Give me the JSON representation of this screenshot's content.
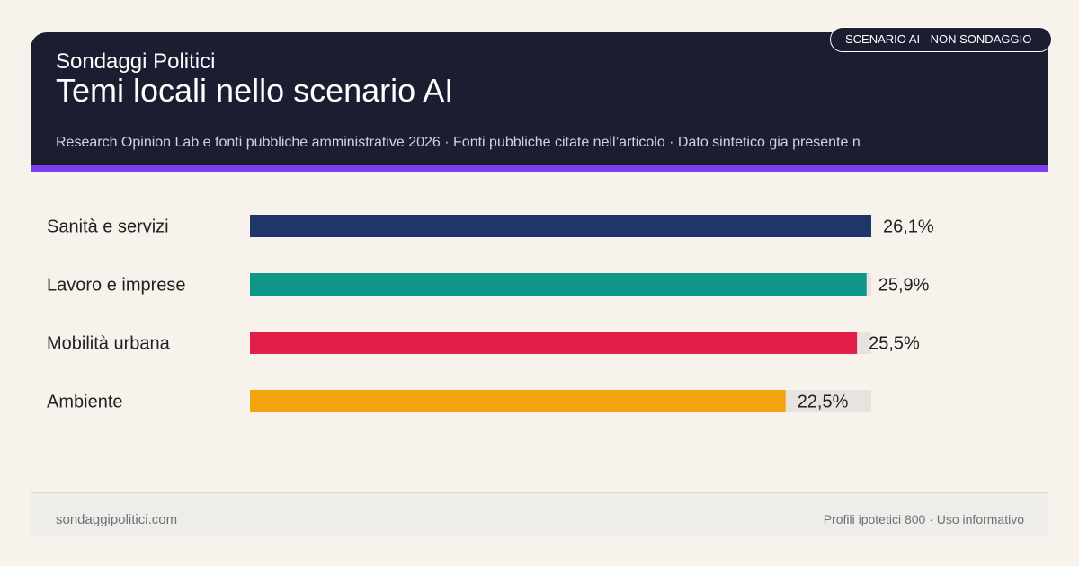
{
  "header": {
    "brand": "Sondaggi Politici",
    "title": "Temi locali nello scenario AI",
    "subtitle": "Research Opinion Lab e fonti pubbliche amministrative 2026 · Fonti pubbliche citate nell’articolo · Dato sintetico gia presente n",
    "badge": "SCENARIO AI - NON SONDAGGIO"
  },
  "chart_data": {
    "type": "bar",
    "orientation": "horizontal",
    "categories": [
      "Sanità e servizi",
      "Lavoro e imprese",
      "Mobilità urbana",
      "Ambiente"
    ],
    "values": [
      26.1,
      25.9,
      25.5,
      22.5
    ],
    "value_labels": [
      "26,1%",
      "25,9%",
      "25,5%",
      "22,5%"
    ],
    "xlim": [
      0,
      26.1
    ],
    "colors": [
      "#1f3768",
      "#0e9788",
      "#e11f49",
      "#f4a20e"
    ],
    "track_color": "#e7e3df",
    "grid": false
  },
  "footer": {
    "site": "sondaggipolitici.com",
    "note": "Profili ipotetici 800 · Uso informativo"
  }
}
